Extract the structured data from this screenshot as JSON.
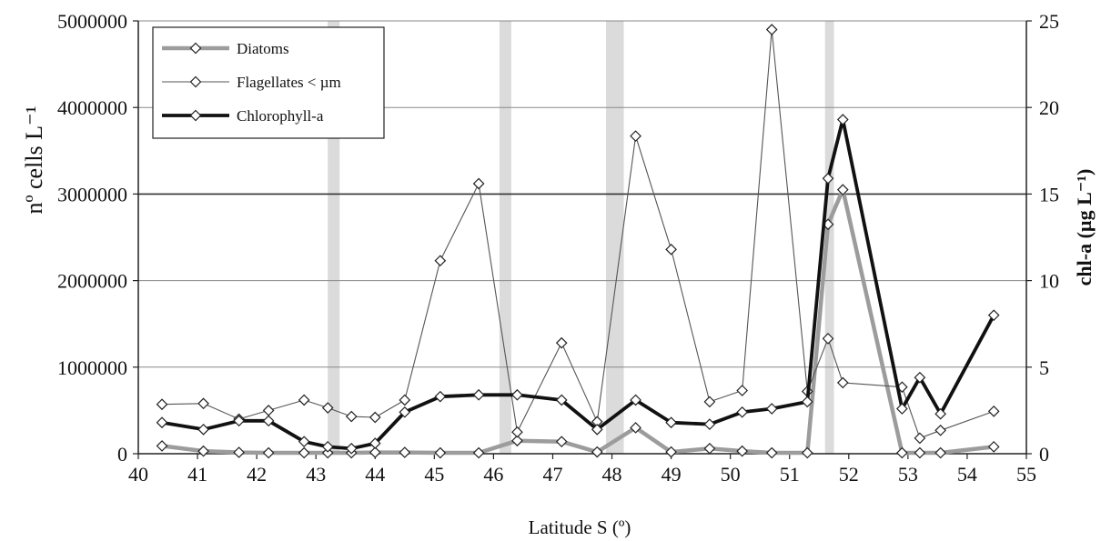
{
  "chart_data": {
    "type": "line",
    "x_axis": {
      "label": "Latitude S (º)",
      "range": [
        40,
        55
      ],
      "ticks": [
        "40",
        "41",
        "42",
        "43",
        "44",
        "45",
        "46",
        "47",
        "48",
        "49",
        "50",
        "51",
        "52",
        "53",
        "54",
        "55"
      ]
    },
    "y_left": {
      "label": "nº cells L⁻¹",
      "range": [
        0,
        5000000
      ],
      "ticks": [
        "0",
        "1000000",
        "2000000",
        "3000000",
        "4000000",
        "5000000"
      ]
    },
    "y_right": {
      "label": "chl-a (µg L⁻¹)",
      "range": [
        0,
        25
      ],
      "ticks": [
        "0",
        "5",
        "10",
        "15",
        "20",
        "25"
      ]
    },
    "grid": "horizontal",
    "legend_position": "top-left",
    "highlight_bands": [
      [
        43.2,
        43.4
      ],
      [
        46.1,
        46.3
      ],
      [
        47.9,
        48.2
      ],
      [
        51.6,
        51.75
      ]
    ],
    "series": [
      {
        "name": "Diatoms",
        "axis": "left",
        "color": "#999999",
        "style": "thick-gray",
        "x": [
          40.4,
          41.1,
          41.7,
          42.2,
          42.8,
          43.2,
          43.6,
          44.0,
          44.5,
          45.1,
          45.75,
          46.4,
          47.15,
          47.75,
          48.4,
          49.0,
          49.65,
          50.2,
          50.7,
          51.3,
          51.65,
          51.9,
          52.9,
          53.2,
          53.55,
          54.45
        ],
        "y": [
          90000,
          30000,
          15000,
          10000,
          10000,
          10000,
          10000,
          15000,
          15000,
          10000,
          10000,
          150000,
          140000,
          20000,
          300000,
          20000,
          60000,
          30000,
          10000,
          10000,
          2650000,
          3050000,
          10000,
          10000,
          10000,
          80000
        ]
      },
      {
        "name": "Flagellates < µm",
        "axis": "left",
        "color": "#555555",
        "style": "thin",
        "x": [
          40.4,
          41.1,
          41.7,
          42.2,
          42.8,
          43.2,
          43.6,
          44.0,
          44.5,
          45.1,
          45.75,
          46.4,
          47.15,
          47.75,
          48.4,
          49.0,
          49.65,
          50.2,
          50.7,
          51.3,
          51.65,
          51.9,
          52.9,
          53.2,
          53.55,
          54.45
        ],
        "y": [
          570000,
          580000,
          400000,
          500000,
          620000,
          530000,
          430000,
          420000,
          620000,
          2230000,
          3120000,
          250000,
          1280000,
          370000,
          3670000,
          2360000,
          600000,
          730000,
          4900000,
          720000,
          1330000,
          820000,
          770000,
          180000,
          270000,
          490000
        ]
      },
      {
        "name": "Chlorophyll-a",
        "axis": "right",
        "color": "#111111",
        "style": "thick-black",
        "x": [
          40.4,
          41.1,
          41.7,
          42.2,
          42.8,
          43.2,
          43.6,
          44.0,
          44.5,
          45.1,
          45.75,
          46.4,
          47.15,
          47.75,
          48.4,
          49.0,
          49.65,
          50.2,
          50.7,
          51.3,
          51.65,
          51.9,
          52.9,
          53.2,
          53.55,
          54.45
        ],
        "y": [
          1.8,
          1.4,
          1.9,
          1.9,
          0.7,
          0.4,
          0.3,
          0.6,
          2.4,
          3.3,
          3.4,
          3.4,
          3.1,
          1.4,
          3.1,
          1.8,
          1.7,
          2.4,
          2.6,
          3.0,
          15.9,
          19.3,
          2.6,
          4.4,
          2.3,
          8.0
        ]
      }
    ]
  }
}
